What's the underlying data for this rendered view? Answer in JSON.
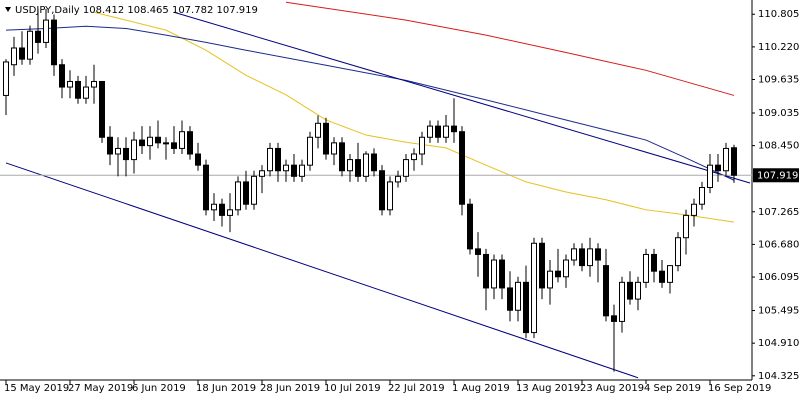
{
  "chart_data": {
    "type": "candlestick",
    "title": "USDJPY,Daily  108.412 108.465 107.782 107.919",
    "categories": [
      "15 May 2019",
      null,
      null,
      null,
      null,
      null,
      null,
      null,
      "27 May 2019",
      null,
      null,
      null,
      null,
      null,
      null,
      null,
      "6 Jun 2019",
      null,
      null,
      null,
      null,
      null,
      null,
      null,
      "18 Jun 2019",
      null,
      null,
      null,
      null,
      null,
      null,
      null,
      "28 Jun 2019",
      null,
      null,
      null,
      null,
      null,
      null,
      null,
      "10 Jul 2019",
      null,
      null,
      null,
      null,
      null,
      null,
      null,
      "22 Jul 2019",
      null,
      null,
      null,
      null,
      null,
      null,
      null,
      "1 Aug 2019",
      null,
      null,
      null,
      null,
      null,
      null,
      null,
      "13 Aug 2019",
      null,
      null,
      null,
      null,
      null,
      null,
      null,
      "23 Aug 2019",
      null,
      null,
      null,
      null,
      null,
      null,
      null,
      "4 Sep 2019",
      null,
      null,
      null,
      null,
      null,
      null,
      null,
      "16 Sep 2019",
      null,
      null,
      null
    ],
    "open": [
      109.35,
      109.9,
      110.2,
      110.0,
      110.5,
      110.3,
      110.7,
      109.9,
      109.5,
      109.6,
      109.3,
      109.5,
      109.6,
      108.6,
      108.3,
      108.4,
      108.2,
      108.55,
      108.45,
      108.6,
      108.5,
      108.5,
      108.4,
      108.7,
      108.3,
      108.1,
      107.3,
      107.4,
      107.2,
      107.3,
      107.8,
      107.4,
      107.9,
      108.0,
      108.4,
      108.0,
      108.1,
      107.9,
      108.1,
      108.6,
      108.85,
      108.3,
      108.5,
      108.0,
      108.2,
      107.9,
      108.3,
      108.0,
      107.3,
      107.8,
      107.9,
      108.2,
      108.3,
      108.6,
      108.8,
      108.6,
      108.8,
      108.7,
      107.4,
      106.6,
      106.5,
      105.9,
      106.4,
      105.9,
      105.5,
      106.0,
      105.1,
      106.7,
      105.9,
      106.2,
      106.1,
      106.4,
      106.6,
      106.3,
      106.6,
      106.3,
      105.4,
      105.3,
      106.0,
      105.7,
      106.0,
      106.5,
      106.2,
      106.0,
      106.3,
      106.8,
      107.2,
      107.4,
      107.7,
      108.1,
      108.0,
      108.412
    ],
    "high": [
      110.0,
      110.4,
      110.5,
      110.6,
      110.9,
      110.9,
      110.8,
      110.0,
      109.8,
      109.7,
      109.7,
      109.9,
      109.6,
      108.8,
      108.6,
      108.6,
      108.7,
      108.8,
      108.8,
      108.9,
      108.6,
      108.8,
      108.9,
      108.8,
      108.5,
      108.2,
      107.6,
      107.5,
      107.6,
      107.9,
      108.0,
      108.0,
      108.1,
      108.5,
      108.5,
      108.2,
      108.3,
      108.2,
      108.7,
      108.99,
      108.95,
      108.6,
      108.6,
      108.3,
      108.5,
      108.35,
      108.4,
      108.1,
      107.9,
      108.0,
      108.3,
      108.4,
      108.7,
      108.9,
      108.9,
      109.0,
      109.3,
      108.8,
      107.5,
      106.9,
      106.6,
      106.5,
      106.5,
      106.2,
      106.1,
      106.3,
      106.8,
      106.8,
      106.4,
      106.6,
      106.5,
      106.7,
      106.7,
      106.8,
      106.7,
      106.6,
      105.6,
      106.1,
      106.2,
      106.1,
      106.6,
      106.6,
      106.4,
      106.3,
      106.9,
      107.3,
      107.5,
      107.8,
      108.3,
      108.3,
      108.5,
      108.465
    ],
    "low": [
      109.0,
      109.7,
      109.9,
      109.9,
      110.1,
      110.2,
      109.7,
      109.3,
      109.3,
      109.2,
      109.2,
      109.2,
      108.5,
      108.1,
      107.9,
      107.9,
      107.95,
      108.3,
      108.2,
      108.4,
      108.2,
      108.3,
      108.3,
      108.2,
      108.0,
      107.2,
      107.1,
      107.0,
      106.9,
      107.2,
      107.3,
      107.3,
      107.6,
      107.9,
      107.8,
      107.8,
      107.8,
      107.8,
      108.0,
      108.4,
      108.2,
      108.1,
      107.9,
      107.8,
      107.8,
      107.8,
      107.9,
      107.2,
      107.2,
      107.7,
      107.8,
      108.0,
      108.1,
      108.5,
      108.5,
      108.5,
      108.5,
      107.2,
      106.5,
      106.1,
      105.5,
      105.7,
      105.7,
      105.3,
      105.3,
      105.0,
      105.0,
      105.7,
      105.6,
      106.0,
      105.9,
      106.3,
      106.2,
      106.1,
      106.0,
      105.3,
      104.4,
      105.1,
      105.6,
      105.5,
      105.9,
      106.0,
      105.9,
      105.8,
      106.2,
      106.5,
      107.0,
      107.3,
      107.6,
      107.8,
      107.9,
      107.782
    ],
    "close": [
      109.95,
      110.2,
      110.0,
      110.5,
      110.3,
      110.7,
      109.9,
      109.5,
      109.6,
      109.3,
      109.5,
      109.6,
      108.6,
      108.3,
      108.4,
      108.2,
      108.55,
      108.45,
      108.6,
      108.5,
      108.5,
      108.4,
      108.7,
      108.3,
      108.1,
      107.3,
      107.4,
      107.2,
      107.3,
      107.8,
      107.4,
      107.9,
      108.0,
      108.4,
      108.0,
      108.1,
      107.9,
      108.1,
      108.6,
      108.85,
      108.3,
      108.5,
      108.0,
      108.2,
      107.9,
      108.3,
      108.0,
      107.3,
      107.8,
      107.9,
      108.2,
      108.3,
      108.6,
      108.8,
      108.6,
      108.8,
      108.7,
      107.4,
      106.6,
      106.5,
      105.9,
      106.4,
      105.9,
      105.5,
      106.0,
      105.1,
      106.7,
      105.9,
      106.2,
      106.1,
      106.4,
      106.6,
      106.3,
      106.6,
      106.4,
      105.4,
      105.3,
      106.0,
      105.7,
      106.0,
      106.5,
      106.2,
      106.0,
      106.3,
      106.8,
      107.2,
      107.4,
      107.7,
      108.1,
      108.0,
      108.4,
      107.919
    ],
    "up_color": "#ffffff",
    "down_color": "#000000",
    "overlays": [
      {
        "color": "#d81b1b",
        "x": [
          35,
          50,
          60,
          70,
          80,
          91
        ],
        "values": [
          111.02,
          110.7,
          110.43,
          110.12,
          109.8,
          109.35
        ]
      },
      {
        "color": "#e8c020",
        "x": [
          11,
          15,
          20,
          25,
          30,
          35,
          40,
          45,
          50,
          55,
          60,
          65,
          70,
          75,
          80,
          85,
          91
        ],
        "values": [
          110.84,
          110.7,
          110.52,
          110.16,
          109.71,
          109.36,
          108.91,
          108.64,
          108.51,
          108.41,
          108.1,
          107.8,
          107.62,
          107.48,
          107.3,
          107.21,
          107.08
        ]
      },
      {
        "color": "#1a2a8a",
        "x": [
          0,
          5,
          10,
          15,
          20,
          25,
          30,
          40,
          50,
          60,
          70,
          80,
          85,
          91
        ],
        "values": [
          110.52,
          110.55,
          110.59,
          110.55,
          110.43,
          110.3,
          110.16,
          109.89,
          109.62,
          109.27,
          108.91,
          108.55,
          108.23,
          107.83
        ]
      },
      {
        "color": "#000080",
        "x": [
          21,
          93
        ],
        "values": [
          110.84,
          107.78
        ]
      },
      {
        "color": "#000080",
        "x": [
          0,
          79
        ],
        "values": [
          108.14,
          104.29
        ]
      }
    ],
    "last": 107.919,
    "ylim": [
      104.25,
      111.06
    ],
    "yticks": [
      110.805,
      {
        "value": 110.22,
        "label": "110.220"
      },
      109.635,
      109.035,
      {
        "value": 108.45,
        "label": "108.450"
      },
      107.265,
      {
        "value": 106.68,
        "label": "106.680"
      },
      106.095,
      105.495,
      {
        "value": 104.91,
        "label": "104.910"
      },
      104.325
    ]
  }
}
